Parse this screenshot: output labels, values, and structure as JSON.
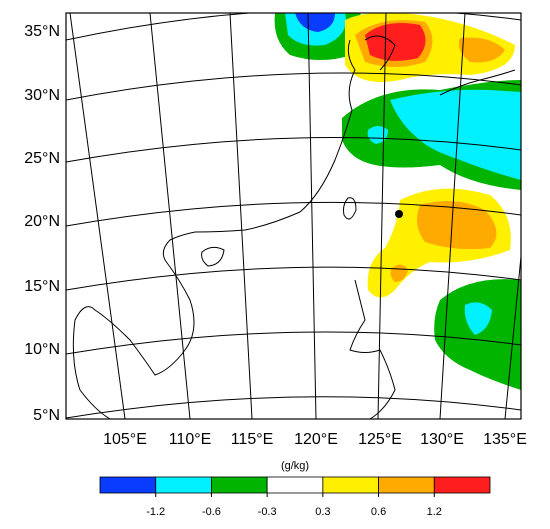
{
  "map": {
    "lat_labels": [
      "35°N",
      "30°N",
      "25°N",
      "20°N",
      "15°N",
      "10°N",
      "5°N"
    ],
    "lon_labels": [
      "105°E",
      "110°E",
      "115°E",
      "120°E",
      "125°E",
      "130°E",
      "135°E"
    ],
    "colorbar": {
      "unit": "(g/kg)",
      "levels": [
        -1.2,
        -0.6,
        -0.3,
        0.3,
        0.6,
        1.2
      ],
      "colors": [
        "#0a3cff",
        "#00f0ff",
        "#00b400",
        "#ffffff",
        "#fff000",
        "#ffaa00",
        "#ff1e1e"
      ]
    }
  }
}
